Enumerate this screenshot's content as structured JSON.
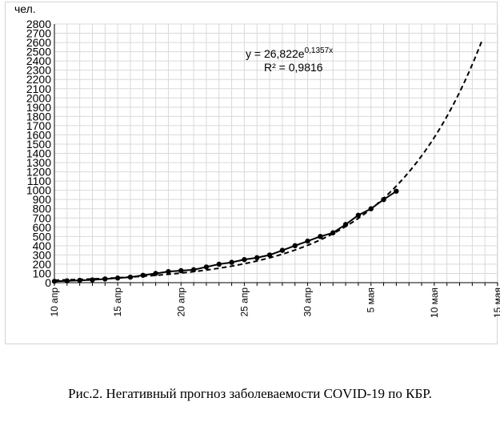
{
  "caption": "Рис.2. Негативный прогноз заболеваемости COVID-19 по КБР.",
  "chart_data": {
    "type": "scatter",
    "title": "",
    "ylabel": "чел.",
    "xlabel": "",
    "ylim": [
      0,
      2800
    ],
    "yticks": [
      0,
      100,
      200,
      300,
      400,
      500,
      600,
      700,
      800,
      900,
      1000,
      1100,
      1200,
      1300,
      1400,
      1500,
      1600,
      1700,
      1800,
      1900,
      2000,
      2100,
      2200,
      2300,
      2400,
      2500,
      2600,
      2700,
      2800
    ],
    "xlim": [
      0,
      35
    ],
    "xticks": [
      {
        "x": 0,
        "label": "10 апр"
      },
      {
        "x": 5,
        "label": "15 апр"
      },
      {
        "x": 10,
        "label": "20 апр"
      },
      {
        "x": 15,
        "label": "25 апр"
      },
      {
        "x": 20,
        "label": "30 апр"
      },
      {
        "x": 25,
        "label": "5 мая"
      },
      {
        "x": 30,
        "label": "10 мая"
      },
      {
        "x": 35,
        "label": "15 мая"
      }
    ],
    "grid": true,
    "series": [
      {
        "style": "solid-line-with-markers",
        "color": "#000000",
        "x": [
          0,
          1,
          2,
          3,
          4,
          5,
          6,
          7,
          8,
          9,
          10,
          11,
          12,
          13,
          14,
          15,
          16,
          17,
          18,
          19,
          20,
          21,
          22,
          23,
          24,
          25,
          26,
          27
        ],
        "y": [
          15,
          20,
          25,
          30,
          40,
          50,
          60,
          80,
          100,
          120,
          130,
          140,
          170,
          200,
          220,
          250,
          270,
          300,
          350,
          400,
          450,
          500,
          540,
          630,
          730,
          800,
          900,
          990
        ]
      }
    ],
    "trendline": {
      "type": "exponential",
      "style": "dashed",
      "a": 26.822,
      "b": 0.1357,
      "x_from": 0,
      "x_to": 33.8,
      "equation_prefix": "y = 26,822e",
      "equation_exponent": "0,1357x",
      "r_squared": "R² = 0,9816"
    }
  }
}
